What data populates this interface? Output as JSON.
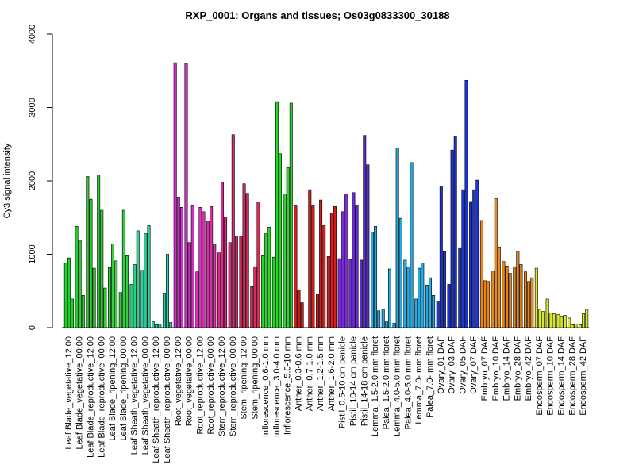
{
  "chart_data": {
    "type": "bar",
    "title": "RXP_0001: Organs and tissues; Os03g0833300_30188",
    "xlabel": "",
    "ylabel": "Cy3 signal intensity",
    "ylim": [
      0,
      4000
    ],
    "yticks": [
      0,
      1000,
      2000,
      3000,
      4000
    ],
    "grid": false,
    "legend": "none",
    "categories": [
      "Leaf Blade_vegetative_12:00",
      "Leaf Blade_vegetative_00:00",
      "Leaf Blade_reproductive_12:00",
      "Leaf Blade_reproductive_00:00",
      "Leaf Blade_ripening_12:00",
      "Leaf Blade_ripening_00:00",
      "Leaf Sheath_vegetative_12:00",
      "Leaf Sheath_vegetative_00:00",
      "Leaf Sheath_reproductive_12:00",
      "Leaf Sheath_reproductive_00:00",
      "Root_vegetative_12:00",
      "Root_vegetative_00:00",
      "Root_reproductive_12:00",
      "Root_reproductive_00:00",
      "Stem_reproductive_12:00",
      "Stem_reproductive_00:00",
      "Stem_ripening_12:00",
      "Stem_ripening_00:00",
      "Inflorescence_0.6-1.0 mm",
      "Inflorescence_3.0-4.0 mm",
      "Inflorescence_5.0-10 mm",
      "Anther_0.3-0.6 mm",
      "Anther_0.7-1.0 mm",
      "Anther_1.2-1.5 mm",
      "Anther_1.6-2.0 mm",
      "Pistil_0.5-10 cm panicle",
      "Pistil_10-14 cm panicle",
      "Pistil_14-18 cm panicle",
      "Lemma_1.5-2.0 mm floret",
      "Palea_1.5-2.0 mm floret",
      "Lemma_4.0-5.0 mm floret",
      "Palea_4.0-5.0 mm floret",
      "Lemma_7.0- mm floret",
      "Palea_7.0- mm floret",
      "Ovary_01 DAF",
      "Ovary_03 DAF",
      "Ovary_05 DAF",
      "Ovary_07 DAF",
      "Embryo_07 DAF",
      "Embryo_10 DAF",
      "Embryo_14 DAF",
      "Embryo_28 DAF",
      "Embryo_42 DAF",
      "Endosperm_07 DAF",
      "Endosperm_10 DAF",
      "Endosperm_14 DAF",
      "Endosperm_28 DAF",
      "Endosperm_42 DAF"
    ],
    "group_colors": [
      "#1fd22a",
      "#22d22e",
      "#28d02b",
      "#2bcf2e",
      "#3acd3e",
      "#33ce40",
      "#2ecf86",
      "#2ccc9c",
      "#28d1aa",
      "#2ad0b0",
      "#d92ad9",
      "#d22dc6",
      "#da33b8",
      "#d630a6",
      "#dc2a8a",
      "#d92a78",
      "#df2a5f",
      "#e22a58",
      "#2ad42a",
      "#2ad42a",
      "#2ad42a",
      "#d91c1c",
      "#d81c1c",
      "#d71c1c",
      "#d61c1c",
      "#7a2ad9",
      "#6a2ad8",
      "#5a2ad8",
      "#27a8df",
      "#27a8df",
      "#27a8df",
      "#27a8df",
      "#27a8df",
      "#27a8df",
      "#1a35d9",
      "#1a35d9",
      "#1a35d9",
      "#1a35d9",
      "#e8861c",
      "#e8861c",
      "#e8861c",
      "#e8861c",
      "#e8861c",
      "#d8e82a",
      "#d8e82a",
      "#d8e82a",
      "#d8e82a",
      "#d8e82a"
    ],
    "bar_values": [
      [
        880,
        950,
        390
      ],
      [
        1380,
        1190,
        440
      ],
      [
        2060,
        1750,
        810
      ],
      [
        2080,
        1600,
        540
      ],
      [
        820,
        1140,
        910
      ],
      [
        480,
        1600,
        980
      ],
      [
        590,
        860,
        1320
      ],
      [
        780,
        1280,
        1390
      ],
      [
        80,
        40,
        50
      ],
      [
        470,
        1000,
        70
      ],
      [
        3610,
        1780,
        1640
      ],
      [
        3600,
        1160,
        1660
      ],
      [
        760,
        1640,
        1580
      ],
      [
        1450,
        1650,
        1140
      ],
      [
        1020,
        1980,
        1510
      ],
      [
        1160,
        2630,
        1250
      ],
      [
        1250,
        1960,
        1830
      ],
      [
        560,
        830,
        1710
      ],
      [
        980,
        1280,
        1370
      ],
      [
        960,
        3080,
        2370
      ],
      [
        1820,
        2180,
        3060
      ],
      [
        1660,
        510,
        340
      ],
      [
        0,
        1880,
        1660
      ],
      [
        460,
        1740,
        1390
      ],
      [
        970,
        1560,
        1650
      ],
      [
        940,
        1580,
        1820
      ],
      [
        930,
        1840,
        1660
      ],
      [
        920,
        2620,
        2220
      ],
      [
        1300,
        1380,
        230
      ],
      [
        250,
        80,
        800
      ],
      [
        60,
        2450,
        1490
      ],
      [
        920,
        830,
        2250
      ],
      [
        390,
        810,
        880
      ],
      [
        580,
        680,
        440
      ],
      [
        360,
        1930,
        1040
      ],
      [
        590,
        2420,
        2600
      ],
      [
        1090,
        1880,
        3370
      ],
      [
        1720,
        1880,
        2010
      ],
      [
        1460,
        640,
        630
      ],
      [
        770,
        1760,
        1100
      ],
      [
        900,
        840,
        740
      ],
      [
        830,
        1040,
        860
      ],
      [
        760,
        630,
        680
      ],
      [
        810,
        250,
        220
      ],
      [
        390,
        200,
        190
      ],
      [
        180,
        160,
        170
      ],
      [
        130,
        40,
        50
      ],
      [
        40,
        190,
        250
      ]
    ]
  }
}
